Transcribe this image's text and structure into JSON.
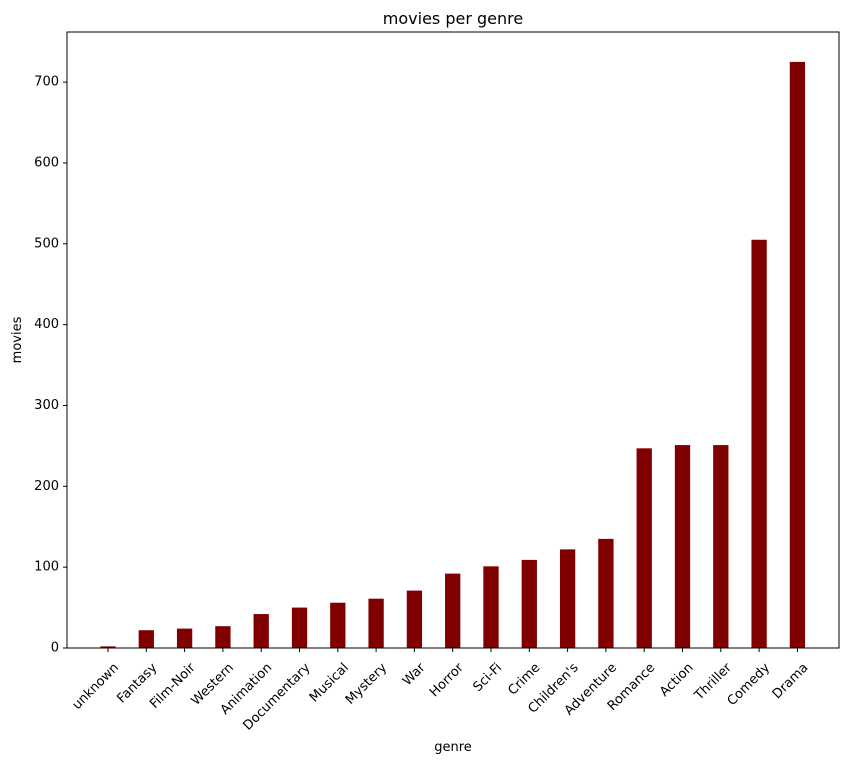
{
  "chart_data": {
    "type": "bar",
    "title": "movies per genre",
    "xlabel": "genre",
    "ylabel": "movies",
    "ylim": [
      0,
      762
    ],
    "yticks": [
      0,
      100,
      200,
      300,
      400,
      500,
      600,
      700
    ],
    "grid": false,
    "bar_color": "#800000",
    "categories": [
      "unknown",
      "Fantasy",
      "Film-Noir",
      "Western",
      "Animation",
      "Documentary",
      "Musical",
      "Mystery",
      "War",
      "Horror",
      "Sci-Fi",
      "Crime",
      "Children's",
      "Adventure",
      "Romance",
      "Action",
      "Thriller",
      "Comedy",
      "Drama"
    ],
    "values": [
      2,
      22,
      24,
      27,
      42,
      50,
      56,
      61,
      71,
      92,
      101,
      109,
      122,
      135,
      247,
      251,
      251,
      505,
      725
    ]
  }
}
